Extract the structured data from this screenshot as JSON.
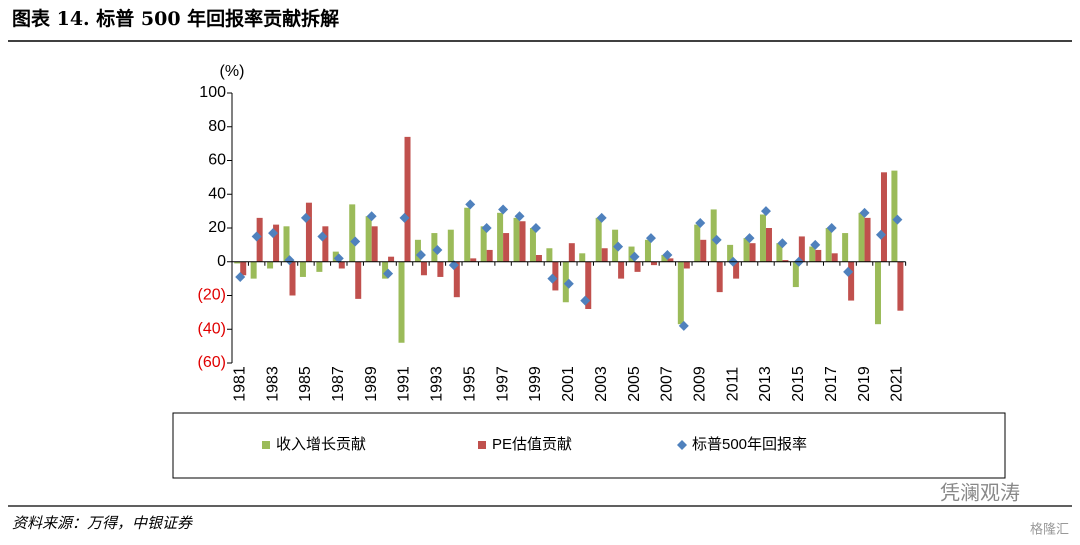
{
  "chart_data": {
    "type": "bar",
    "title": "图表 14. 标普 500 年回报率贡献拆解",
    "unit_label": "(%)",
    "source": "资料来源：万得，中银证券",
    "watermark": "凭澜观涛",
    "watermark2": "格隆汇",
    "categories": [
      "1981",
      null,
      "1983",
      null,
      "1985",
      null,
      "1987",
      null,
      "1989",
      null,
      "1991",
      null,
      "1993",
      null,
      "1995",
      null,
      "1997",
      null,
      "1999",
      null,
      "2001",
      null,
      "2003",
      null,
      "2005",
      null,
      "2007",
      null,
      "2009",
      null,
      "2011",
      null,
      "2013",
      null,
      "2015",
      null,
      "2017",
      null,
      "2019",
      null,
      "2021"
    ],
    "series": [
      {
        "name": "收入增长贡献",
        "color": "#9bbb59",
        "kind": "bar",
        "values": [
          -1,
          -10,
          -4,
          21,
          -9,
          -6,
          6,
          34,
          27,
          -10,
          -48,
          13,
          17,
          19,
          32,
          21,
          29,
          26,
          20,
          8,
          -24,
          5,
          26,
          19,
          9,
          13,
          4,
          -37,
          22,
          31,
          10,
          14,
          28,
          11,
          -15,
          9,
          20,
          17,
          29,
          -37,
          54
        ]
      },
      {
        "name": "PE估值贡献",
        "color": "#c0504d",
        "kind": "bar",
        "values": [
          -8,
          26,
          22,
          -20,
          35,
          21,
          -4,
          -22,
          21,
          3,
          74,
          -8,
          -9,
          -21,
          2,
          7,
          17,
          24,
          4,
          -17,
          11,
          -28,
          8,
          -10,
          -6,
          -2,
          2,
          -4,
          13,
          -18,
          -10,
          11,
          20,
          1,
          15,
          7,
          5,
          -23,
          26,
          53,
          -29
        ]
      },
      {
        "name": "标普500年回报率",
        "color": "#4f81bd",
        "kind": "marker",
        "values": [
          -9,
          15,
          17,
          1,
          26,
          15,
          2,
          12,
          27,
          -7,
          26,
          4,
          7,
          -2,
          34,
          20,
          31,
          27,
          20,
          -10,
          -13,
          -23,
          26,
          9,
          3,
          14,
          4,
          -38,
          23,
          13,
          0,
          14,
          30,
          11,
          0,
          10,
          20,
          -6,
          29,
          16,
          25
        ]
      }
    ],
    "ylim": [
      -60,
      100
    ],
    "yticks": [
      {
        "value": -60,
        "label": "(60)"
      },
      {
        "value": -40,
        "label": "(40)"
      },
      {
        "value": -20,
        "label": "(20)"
      },
      0,
      20,
      40,
      60,
      80,
      100
    ]
  }
}
